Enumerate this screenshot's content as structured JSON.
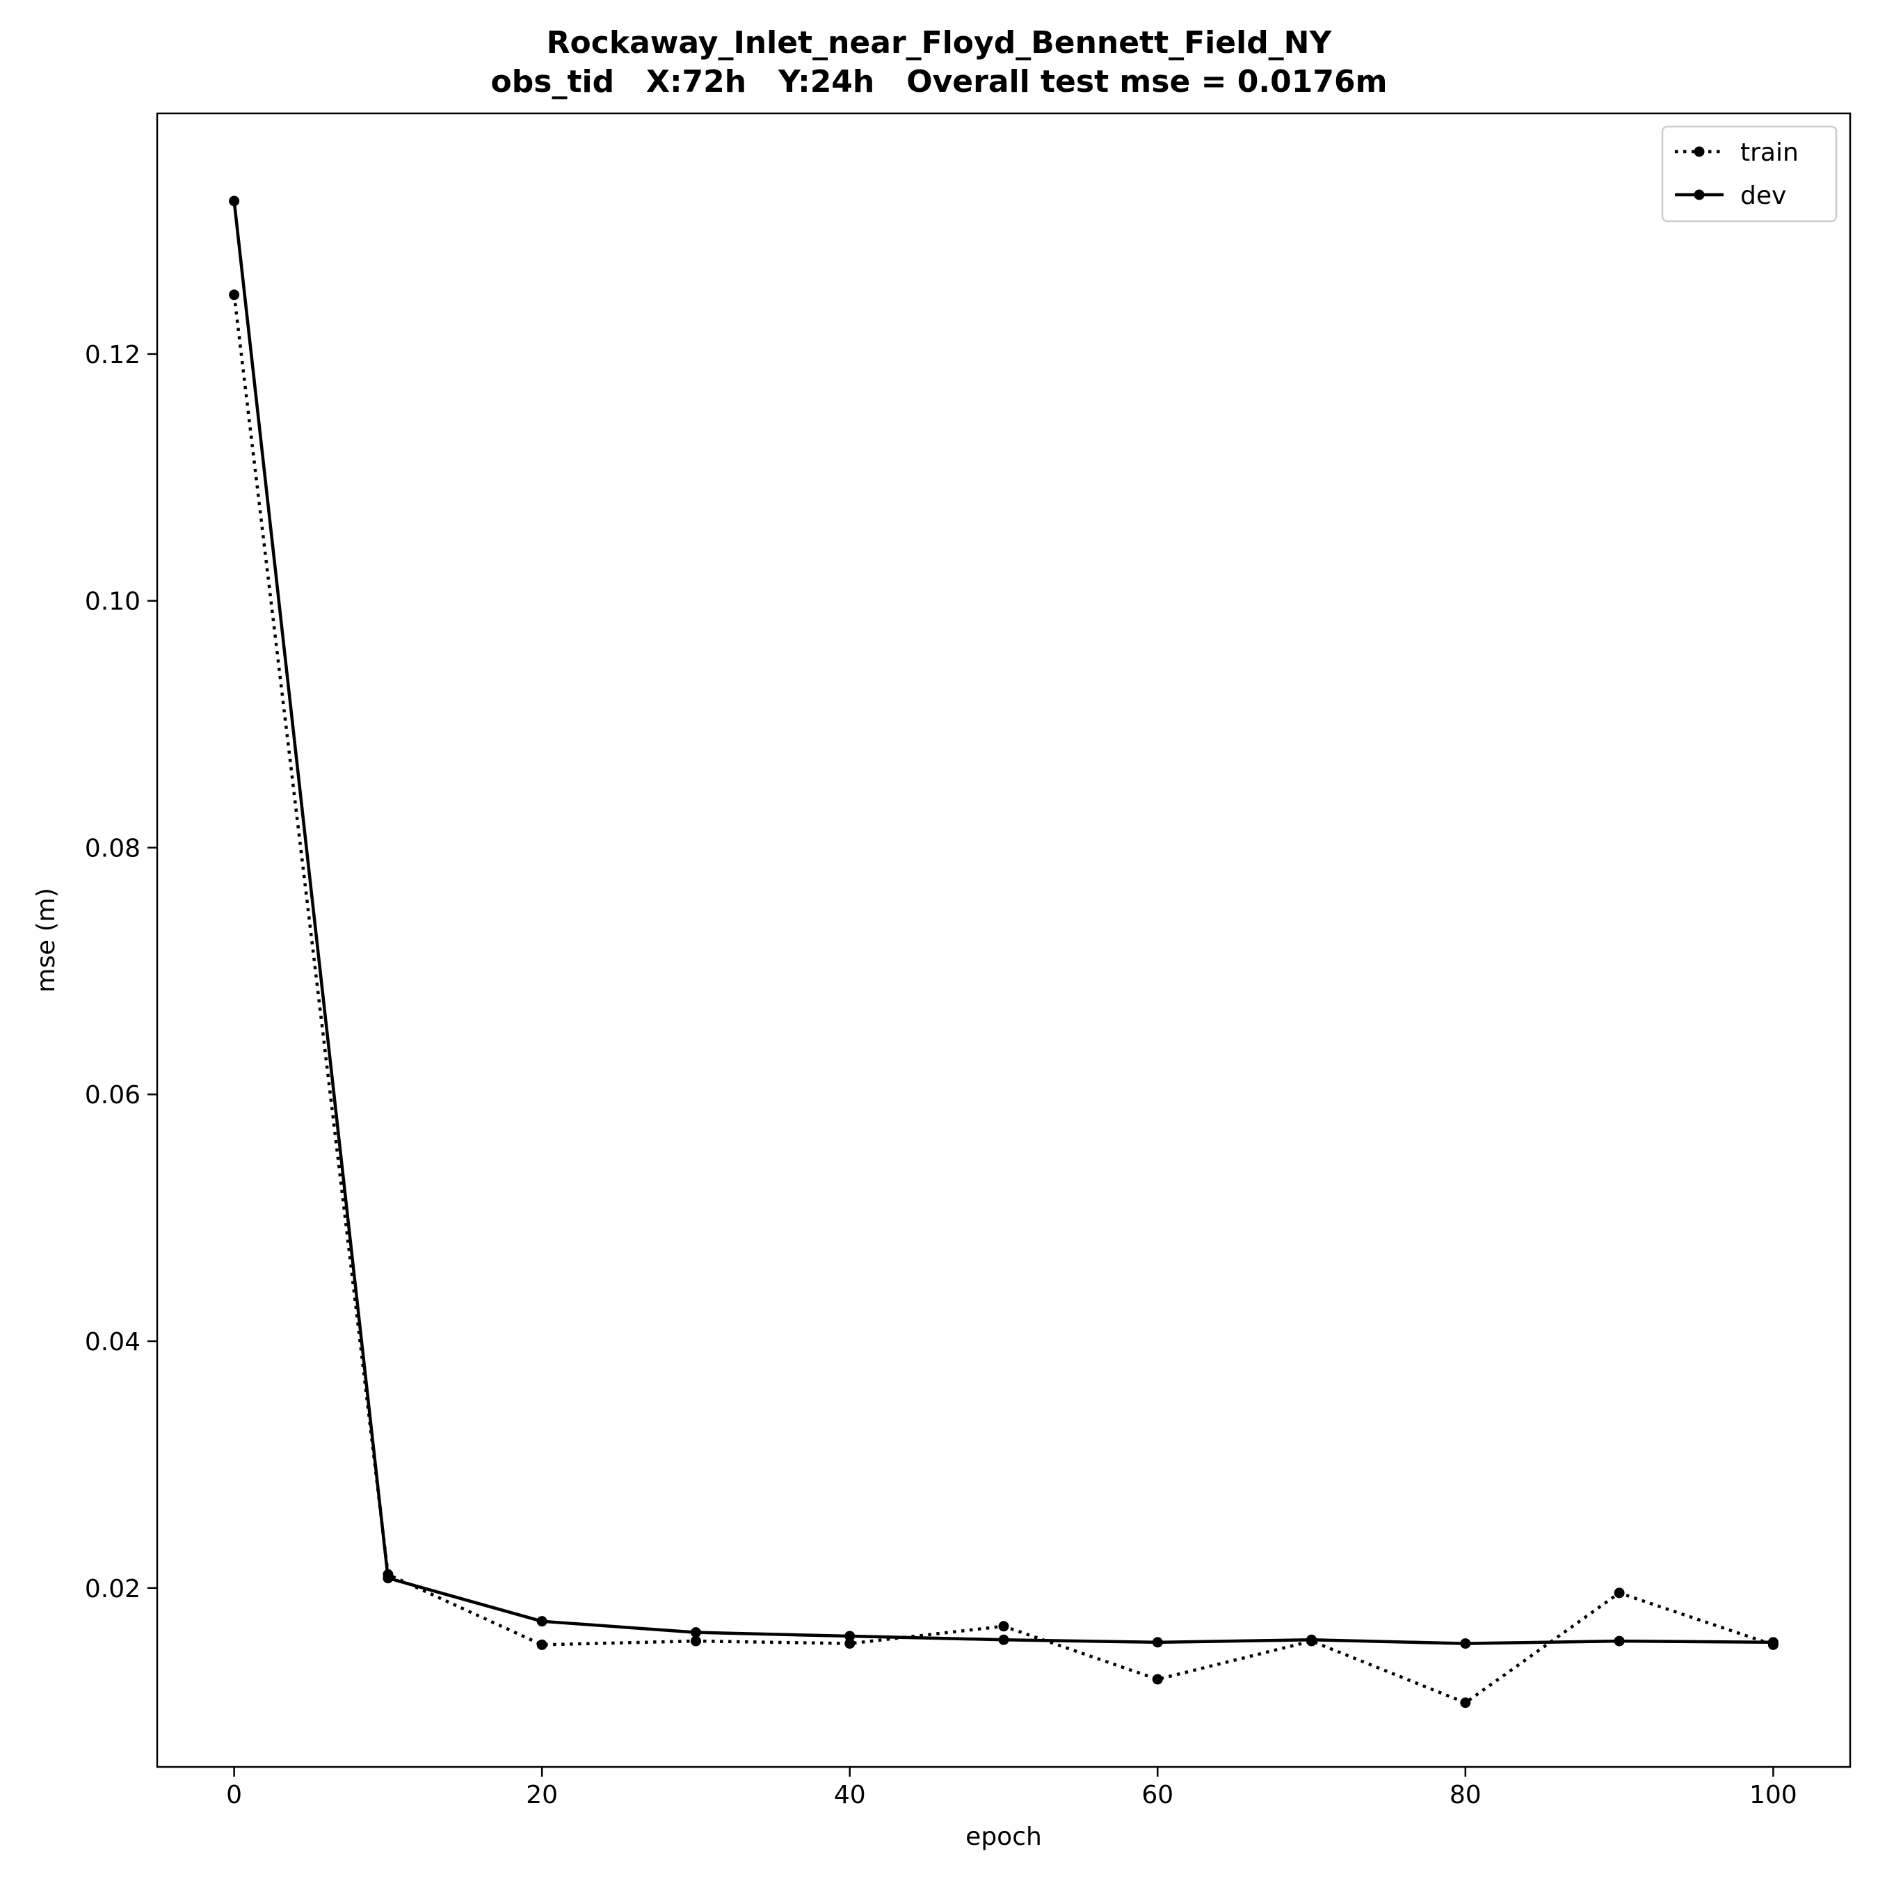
{
  "chart_data": {
    "type": "line",
    "title": "Rockaway_Inlet_near_Floyd_Bennett_Field_NY",
    "subtitle": "obs_tid   X:72h   Y:24h   Overall test mse = 0.0176m",
    "xlabel": "epoch",
    "ylabel": "mse (m)",
    "xlim": [
      -5,
      105
    ],
    "ylim": [
      0.0055,
      0.1395
    ],
    "xticks": [
      0,
      20,
      40,
      60,
      80,
      100
    ],
    "yticks": [
      0.02,
      0.04,
      0.06,
      0.08,
      0.1,
      0.12
    ],
    "ytick_labels": [
      "0.02",
      "0.04",
      "0.06",
      "0.08",
      "0.10",
      "0.12"
    ],
    "grid": false,
    "legend_position": "top-right",
    "series": [
      {
        "name": "train",
        "style": "dotted",
        "color": "#000000",
        "x": [
          0,
          10,
          20,
          30,
          40,
          50,
          60,
          70,
          80,
          90,
          100
        ],
        "y": [
          0.1248,
          0.0211,
          0.0154,
          0.0157,
          0.0155,
          0.0169,
          0.0126,
          0.0157,
          0.0107,
          0.0196,
          0.0154
        ]
      },
      {
        "name": "dev",
        "style": "solid",
        "color": "#000000",
        "x": [
          0,
          10,
          20,
          30,
          40,
          50,
          60,
          70,
          80,
          90,
          100
        ],
        "y": [
          0.1324,
          0.0208,
          0.0173,
          0.0164,
          0.0161,
          0.0158,
          0.0156,
          0.0158,
          0.0155,
          0.0157,
          0.0156
        ]
      }
    ]
  }
}
